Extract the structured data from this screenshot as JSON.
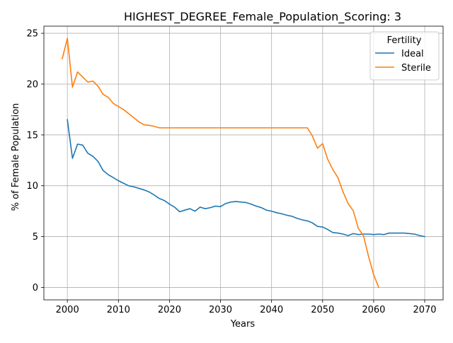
{
  "chart_data": {
    "type": "line",
    "title": "HIGHEST_DEGREE_Female_Population_Scoring: 3",
    "xlabel": "Years",
    "ylabel": "% of Female Population",
    "xlim": [
      1995.4,
      2073.6
    ],
    "ylim": [
      -1.22,
      25.7
    ],
    "xticks": [
      2000,
      2010,
      2020,
      2030,
      2040,
      2050,
      2060,
      2070
    ],
    "yticks": [
      0,
      5,
      10,
      15,
      20,
      25
    ],
    "grid": true,
    "legend": {
      "title": "Fertility",
      "placement": "top-right"
    },
    "series": [
      {
        "name": "Ideal",
        "color": "#1f77b4",
        "x": [
          2000,
          2001,
          2002,
          2003,
          2004,
          2005,
          2006,
          2007,
          2008,
          2009,
          2010,
          2011,
          2012,
          2013,
          2014,
          2015,
          2016,
          2017,
          2018,
          2019,
          2020,
          2021,
          2022,
          2023,
          2024,
          2025,
          2026,
          2027,
          2028,
          2029,
          2030,
          2031,
          2032,
          2033,
          2034,
          2035,
          2036,
          2037,
          2038,
          2039,
          2040,
          2041,
          2042,
          2043,
          2044,
          2045,
          2046,
          2047,
          2048,
          2049,
          2050,
          2051,
          2052,
          2053,
          2054,
          2055,
          2056,
          2057,
          2058,
          2059,
          2060,
          2061,
          2062,
          2063,
          2064,
          2065,
          2066,
          2067,
          2068,
          2069,
          2070
        ],
        "values": [
          16.5,
          12.7,
          14.1,
          14.0,
          13.2,
          12.9,
          12.4,
          11.5,
          11.1,
          10.8,
          10.5,
          10.25,
          10.0,
          9.9,
          9.75,
          9.6,
          9.4,
          9.1,
          8.75,
          8.55,
          8.2,
          7.9,
          7.45,
          7.6,
          7.75,
          7.5,
          7.9,
          7.75,
          7.85,
          8.0,
          7.95,
          8.25,
          8.4,
          8.45,
          8.4,
          8.35,
          8.2,
          8.0,
          7.85,
          7.6,
          7.5,
          7.35,
          7.25,
          7.1,
          7.0,
          6.8,
          6.65,
          6.55,
          6.35,
          6.0,
          5.95,
          5.7,
          5.4,
          5.35,
          5.25,
          5.1,
          5.3,
          5.2,
          5.25,
          5.25,
          5.2,
          5.25,
          5.2,
          5.35,
          5.35,
          5.35,
          5.35,
          5.3,
          5.25,
          5.1,
          5.0
        ]
      },
      {
        "name": "Sterile",
        "color": "#ff7f0e",
        "x": [
          1999,
          2000,
          2001,
          2002,
          2003,
          2004,
          2005,
          2006,
          2007,
          2008,
          2009,
          2010,
          2011,
          2012,
          2013,
          2014,
          2015,
          2016,
          2017,
          2018,
          2019,
          2020,
          2025,
          2030,
          2035,
          2040,
          2045,
          2047,
          2048,
          2049,
          2050,
          2051,
          2052,
          2053,
          2054,
          2055,
          2056,
          2057,
          2058,
          2059,
          2060,
          2061
        ],
        "values": [
          22.5,
          24.5,
          19.7,
          21.2,
          20.7,
          20.2,
          20.3,
          19.8,
          19.0,
          18.7,
          18.1,
          17.8,
          17.5,
          17.1,
          16.7,
          16.3,
          16.0,
          15.95,
          15.85,
          15.7,
          15.7,
          15.7,
          15.7,
          15.7,
          15.7,
          15.7,
          15.7,
          15.7,
          14.9,
          13.7,
          14.15,
          12.6,
          11.6,
          10.8,
          9.4,
          8.25,
          7.55,
          5.8,
          5.1,
          3.05,
          1.25,
          0.0
        ]
      }
    ]
  }
}
